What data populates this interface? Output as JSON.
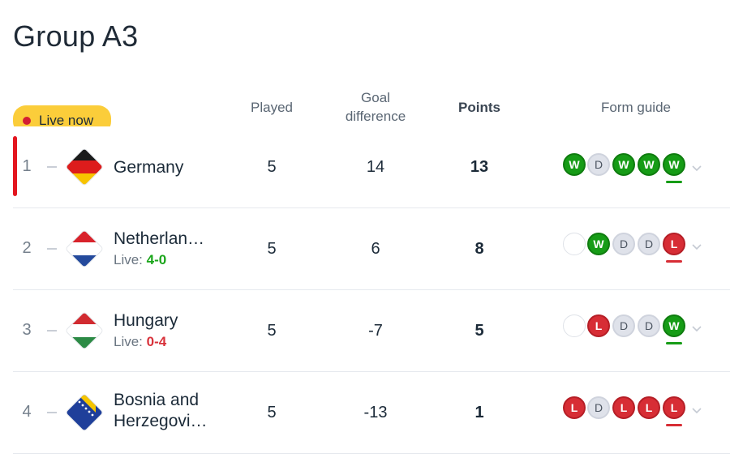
{
  "title": "Group A3",
  "live_badge": "Live now",
  "headers": {
    "played": "Played",
    "goal_diff_line1": "Goal",
    "goal_diff_line2": "difference",
    "points": "Points",
    "form": "Form guide"
  },
  "rows": [
    {
      "rank": "1",
      "team": "Germany",
      "team_line2": "",
      "live_label": "",
      "live_score": "",
      "played": "5",
      "goal_diff": "14",
      "points": "13",
      "flag": "germany-flag-icon",
      "form": [
        "W",
        "D",
        "W",
        "W",
        "W"
      ],
      "form_underline": "W"
    },
    {
      "rank": "2",
      "team": "Netherlan…",
      "team_line2": "",
      "live_label": "Live: ",
      "live_score": "4-0",
      "live_result": "win",
      "played": "5",
      "goal_diff": "6",
      "points": "8",
      "flag": "netherlands-flag-icon",
      "form": [
        "",
        "W",
        "D",
        "D",
        "L"
      ],
      "form_underline": "L"
    },
    {
      "rank": "3",
      "team": "Hungary",
      "team_line2": "",
      "live_label": "Live: ",
      "live_score": "0-4",
      "live_result": "loss",
      "played": "5",
      "goal_diff": "-7",
      "points": "5",
      "flag": "hungary-flag-icon",
      "form": [
        "",
        "L",
        "D",
        "D",
        "W"
      ],
      "form_underline": "W"
    },
    {
      "rank": "4",
      "team": "Bosnia and",
      "team_line2": "Herzegovi…",
      "live_label": "",
      "live_score": "",
      "played": "5",
      "goal_diff": "-13",
      "points": "1",
      "flag": "bosnia-herzegovina-flag-icon",
      "form": [
        "L",
        "D",
        "L",
        "L",
        "L"
      ],
      "form_underline": "L"
    }
  ],
  "colors": {
    "accent_red": "#e3161f",
    "live_yellow": "#fbcd3a",
    "win_green": "#169c16",
    "loss_red": "#d72d35",
    "draw_grey": "#dfe2ea"
  }
}
